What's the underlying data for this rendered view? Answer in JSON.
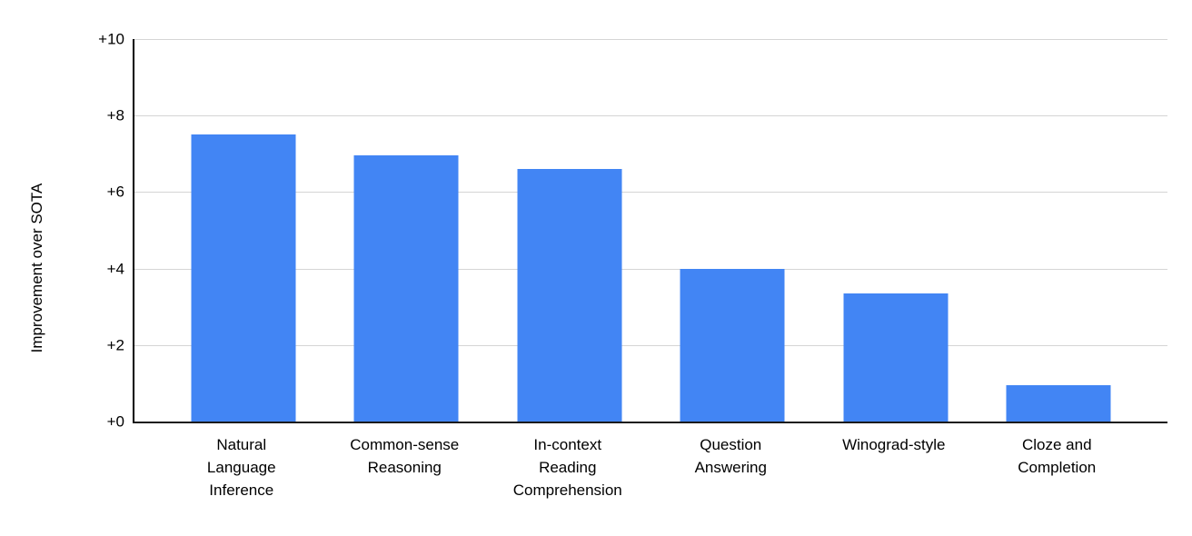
{
  "chart_data": {
    "type": "bar",
    "title": "",
    "xlabel": "",
    "ylabel": "Improvement over SOTA",
    "ylim": [
      0,
      10
    ],
    "grid": true,
    "legend_position": "none",
    "categories": [
      "Natural Language Inference",
      "Common-sense Reasoning",
      "In-context Reading Comprehension",
      "Question Answering",
      "Winograd-style",
      "Cloze and Completion"
    ],
    "category_label_lines": [
      [
        "Natural",
        "Language",
        "Inference"
      ],
      [
        "Common-sense",
        "Reasoning"
      ],
      [
        "In-context",
        "Reading",
        "Comprehension"
      ],
      [
        "Question",
        "Answering"
      ],
      [
        "Winograd-style"
      ],
      [
        "Cloze and",
        "Completion"
      ]
    ],
    "values": [
      7.5,
      6.95,
      6.6,
      4.0,
      3.35,
      0.95
    ],
    "y_ticks": [
      {
        "value": 0,
        "label": "+0"
      },
      {
        "value": 2,
        "label": "+2"
      },
      {
        "value": 4,
        "label": "+4"
      },
      {
        "value": 6,
        "label": "+6"
      },
      {
        "value": 8,
        "label": "+8"
      },
      {
        "value": 10,
        "label": "+10"
      }
    ],
    "colors": {
      "bar": "#4285f4",
      "gridline": "#d5d5d5",
      "axis": "#000000",
      "text": "#000000",
      "background": "#ffffff"
    }
  }
}
